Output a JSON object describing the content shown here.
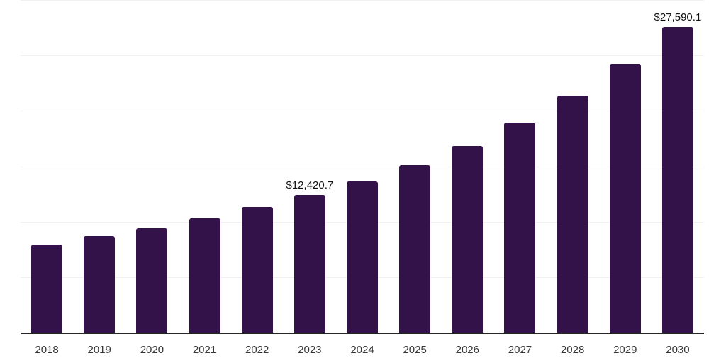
{
  "chart_data": {
    "type": "bar",
    "title": "",
    "xlabel": "",
    "ylabel": "",
    "ylim": [
      0,
      30000
    ],
    "gridline_step": 5000,
    "grid": "horizontal",
    "legend": "none",
    "categories": [
      "2018",
      "2019",
      "2020",
      "2021",
      "2022",
      "2023",
      "2024",
      "2025",
      "2026",
      "2027",
      "2028",
      "2029",
      "2030"
    ],
    "values": [
      7990,
      8720,
      9440,
      10340,
      11340,
      12420.7,
      13640,
      15140,
      16840,
      18950,
      21360,
      24240,
      27590.1
    ],
    "bars": [
      {
        "year": "2018",
        "value": 7990,
        "label": null
      },
      {
        "year": "2019",
        "value": 8720,
        "label": null
      },
      {
        "year": "2020",
        "value": 9440,
        "label": null
      },
      {
        "year": "2021",
        "value": 10340,
        "label": null
      },
      {
        "year": "2022",
        "value": 11340,
        "label": null
      },
      {
        "year": "2023",
        "value": 12420.7,
        "label": "$12,420.7"
      },
      {
        "year": "2024",
        "value": 13640,
        "label": null
      },
      {
        "year": "2025",
        "value": 15140,
        "label": null
      },
      {
        "year": "2026",
        "value": 16840,
        "label": null
      },
      {
        "year": "2027",
        "value": 18950,
        "label": null
      },
      {
        "year": "2028",
        "value": 21360,
        "label": null
      },
      {
        "year": "2029",
        "value": 24240,
        "label": null
      },
      {
        "year": "2030",
        "value": 27590.1,
        "label": "$27,590.1"
      }
    ],
    "colors": {
      "bar_fill": "#33124A",
      "axis_line": "#262626",
      "gridline": "#f0f0f0",
      "value_label_text": "#101010",
      "tick_label_text": "#383838",
      "background": "#ffffff"
    }
  }
}
